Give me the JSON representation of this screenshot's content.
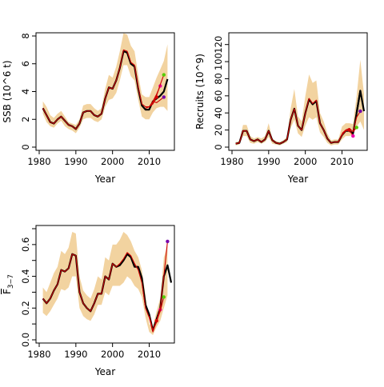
{
  "chart_data": [
    {
      "type": "line",
      "panel": "ssb",
      "xlabel": "Year",
      "ylabel": "SSB (10^6 t)",
      "xlim": [
        1980,
        2016
      ],
      "ylim": [
        0,
        8
      ],
      "xticks": [
        1980,
        1990,
        2000,
        2010
      ],
      "yticks": [
        0,
        2,
        4,
        6,
        8
      ],
      "grid": false,
      "colors": {
        "band": "#f2d3a0",
        "main": "#000000",
        "retro": "#cc0000"
      },
      "band": {
        "x": [
          1981,
          1982,
          1983,
          1984,
          1985,
          1986,
          1987,
          1988,
          1989,
          1990,
          1991,
          1992,
          1993,
          1994,
          1995,
          1996,
          1997,
          1998,
          1999,
          2000,
          2001,
          2002,
          2003,
          2004,
          2005,
          2006,
          2007,
          2008,
          2009,
          2010,
          2011,
          2012,
          2013,
          2014,
          2015
        ],
        "lower": [
          2.4,
          1.8,
          1.5,
          1.4,
          1.7,
          1.9,
          1.5,
          1.3,
          1.2,
          1.0,
          1.4,
          2.0,
          2.1,
          2.1,
          1.9,
          1.8,
          2.0,
          2.9,
          3.4,
          3.5,
          3.9,
          4.8,
          5.9,
          5.9,
          5.1,
          4.8,
          3.4,
          2.2,
          2.0,
          2.0,
          2.5,
          2.8,
          2.9,
          2.9,
          2.6
        ],
        "upper": [
          3.3,
          2.9,
          2.3,
          2.1,
          2.4,
          2.6,
          2.2,
          1.8,
          1.7,
          1.6,
          2.0,
          3.0,
          3.1,
          3.1,
          2.8,
          2.6,
          2.8,
          4.2,
          5.2,
          5.0,
          5.8,
          6.9,
          8.2,
          8.1,
          7.3,
          6.9,
          5.2,
          3.8,
          3.6,
          3.6,
          4.3,
          5.0,
          5.6,
          6.2,
          7.4
        ]
      },
      "series": [
        {
          "x": [
            1981,
            1982,
            1983,
            1984,
            1985,
            1986,
            1987,
            1988,
            1989,
            1990,
            1991,
            1992,
            1993,
            1994,
            1995,
            1996,
            1997,
            1998,
            1999,
            2000,
            2001,
            2002,
            2003,
            2004,
            2005,
            2006,
            2007,
            2008,
            2009,
            2010,
            2011,
            2012,
            2013,
            2014,
            2015
          ],
          "values": [
            2.8,
            2.3,
            1.8,
            1.7,
            2.0,
            2.2,
            1.9,
            1.6,
            1.5,
            1.3,
            1.7,
            2.5,
            2.6,
            2.6,
            2.3,
            2.2,
            2.4,
            3.5,
            4.3,
            4.2,
            4.8,
            5.7,
            6.9,
            6.8,
            6.0,
            5.8,
            4.2,
            3.0,
            2.7,
            2.7,
            3.3,
            3.5,
            3.7,
            4.0,
            4.9
          ],
          "style": "main"
        },
        {
          "x": [
            1981,
            1982,
            1983,
            1984,
            1985,
            1986,
            1987,
            1988,
            1989,
            1990,
            1991,
            1992,
            1993,
            1994,
            1995,
            1996,
            1997,
            1998,
            1999,
            2000,
            2001,
            2002,
            2003,
            2004,
            2005,
            2006,
            2007,
            2008,
            2009,
            2010,
            2011,
            2012
          ],
          "values": [
            2.8,
            2.3,
            1.8,
            1.7,
            2.0,
            2.2,
            1.9,
            1.6,
            1.5,
            1.3,
            1.7,
            2.5,
            2.6,
            2.6,
            2.3,
            2.2,
            2.4,
            3.5,
            4.3,
            4.2,
            4.8,
            5.7,
            7.0,
            6.9,
            6.1,
            5.9,
            4.3,
            3.1,
            2.9,
            2.9,
            3.1,
            3.6
          ],
          "style": "retro",
          "end_color": "#dd0000"
        },
        {
          "x": [
            2009,
            2010,
            2011,
            2012,
            2013
          ],
          "values": [
            2.8,
            2.9,
            3.3,
            3.8,
            4.4
          ],
          "style": "retro",
          "end_color": "#ee00aa"
        },
        {
          "x": [
            2010,
            2011,
            2012,
            2013,
            2014
          ],
          "values": [
            2.9,
            3.2,
            3.7,
            4.5,
            5.2
          ],
          "style": "retro",
          "end_color": "#55cc00"
        },
        {
          "x": [
            2011,
            2012,
            2013,
            2014
          ],
          "values": [
            3.3,
            3.2,
            3.4,
            3.6
          ],
          "style": "retro",
          "end_color": "#7700aa"
        }
      ]
    },
    {
      "type": "line",
      "panel": "recruits",
      "xlabel": "Year",
      "ylabel": "Recruits (10^9)",
      "xlim": [
        1980,
        2016
      ],
      "ylim": [
        0,
        130
      ],
      "xticks": [
        1980,
        1990,
        2000,
        2010
      ],
      "yticks": [
        0,
        20,
        40,
        60,
        80,
        100,
        120
      ],
      "grid": false,
      "colors": {
        "band": "#f2d3a0",
        "main": "#000000",
        "retro": "#cc0000"
      },
      "band": {
        "x": [
          1981,
          1982,
          1983,
          1984,
          1985,
          1986,
          1987,
          1988,
          1989,
          1990,
          1991,
          1992,
          1993,
          1994,
          1995,
          1996,
          1997,
          1998,
          1999,
          2000,
          2001,
          2002,
          2003,
          2004,
          2005,
          2006,
          2007,
          2008,
          2009,
          2010,
          2011,
          2012,
          2013,
          2014,
          2015,
          2016
        ],
        "lower": [
          2,
          3,
          13,
          13,
          5,
          4,
          6,
          4,
          6,
          12,
          4,
          3,
          2,
          4,
          6,
          22,
          32,
          16,
          12,
          25,
          35,
          32,
          35,
          17,
          12,
          5,
          2,
          3,
          3,
          9,
          13,
          13,
          14,
          24,
          30,
          20
        ],
        "upper": [
          6,
          7,
          26,
          26,
          13,
          10,
          12,
          10,
          13,
          28,
          10,
          7,
          6,
          8,
          12,
          45,
          68,
          36,
          30,
          60,
          85,
          75,
          78,
          40,
          30,
          16,
          8,
          9,
          9,
          24,
          28,
          28,
          27,
          60,
          102,
          62
        ]
      },
      "series": [
        {
          "x": [
            1981,
            1982,
            1983,
            1984,
            1985,
            1986,
            1987,
            1988,
            1989,
            1990,
            1991,
            1992,
            1993,
            1994,
            1995,
            1996,
            1997,
            1998,
            1999,
            2000,
            2001,
            2002,
            2003,
            2004,
            2005,
            2006,
            2007,
            2008,
            2009,
            2010,
            2011,
            2012,
            2013,
            2014,
            2015
          ],
          "values": [
            4,
            5,
            19,
            19,
            9,
            7,
            9,
            6,
            9,
            19,
            8,
            5,
            4,
            6,
            9,
            32,
            45,
            25,
            20,
            40,
            56,
            50,
            54,
            28,
            20,
            10,
            5,
            6,
            6,
            14,
            19,
            19,
            16,
            40,
            66
          ],
          "style": "main"
        },
        {
          "x": [
            1981,
            1982,
            1983,
            1984,
            1985,
            1986,
            1987,
            1988,
            1989,
            1990,
            1991,
            1992,
            1993,
            1994,
            1995,
            1996,
            1997,
            1998,
            1999,
            2000,
            2001,
            2002,
            2003,
            2004,
            2005,
            2006,
            2007,
            2008,
            2009,
            2010,
            2011,
            2012
          ],
          "values": [
            4,
            5,
            19,
            19,
            9,
            7,
            9,
            6,
            9,
            19,
            8,
            5,
            4,
            6,
            9,
            32,
            45,
            25,
            20,
            40,
            57,
            51,
            55,
            28,
            20,
            10,
            5,
            6,
            6,
            14,
            19,
            20
          ],
          "style": "retro",
          "end_color": "#dd0000"
        },
        {
          "x": [
            2009,
            2010,
            2011,
            2012,
            2013
          ],
          "values": [
            6,
            15,
            19,
            20,
            13
          ],
          "style": "retro",
          "end_color": "#ee00aa"
        },
        {
          "x": [
            2010,
            2011,
            2012,
            2013,
            2014
          ],
          "values": [
            16,
            20,
            22,
            18,
            23
          ],
          "style": "retro",
          "end_color": "#55cc00"
        },
        {
          "x": [
            2013,
            2014,
            2015
          ],
          "values": [
            18,
            35,
            42
          ],
          "style": "retro",
          "end_color": "#7700aa"
        },
        {
          "x": [
            2014,
            2015,
            2016
          ],
          "values": [
            40,
            66,
            42
          ],
          "style": "main"
        }
      ]
    },
    {
      "type": "line",
      "panel": "fbar",
      "xlabel": "Year",
      "ylabel": "F",
      "ylabel_sub": "3−7",
      "xlim": [
        1980,
        2016
      ],
      "ylim": [
        0,
        0.7
      ],
      "xticks": [
        1980,
        1990,
        2000,
        2010
      ],
      "yticks": [
        0.0,
        0.1,
        0.2,
        0.3,
        0.4,
        0.5,
        0.6,
        0.7
      ],
      "ytick_labels": [
        "0.0",
        "",
        "0.2",
        "",
        "0.4",
        "",
        "0.6",
        ""
      ],
      "grid": false,
      "colors": {
        "band": "#f2d3a0",
        "main": "#000000",
        "retro": "#cc0000"
      },
      "band": {
        "x": [
          1981,
          1982,
          1983,
          1984,
          1985,
          1986,
          1987,
          1988,
          1989,
          1990,
          1991,
          1992,
          1993,
          1994,
          1995,
          1996,
          1997,
          1998,
          1999,
          2000,
          2001,
          2002,
          2003,
          2004,
          2005,
          2006,
          2007,
          2008,
          2009,
          2010,
          2011,
          2012,
          2013,
          2014,
          2015
        ],
        "lower": [
          0.17,
          0.15,
          0.18,
          0.22,
          0.26,
          0.32,
          0.31,
          0.33,
          0.4,
          0.4,
          0.2,
          0.15,
          0.13,
          0.12,
          0.16,
          0.22,
          0.22,
          0.3,
          0.28,
          0.34,
          0.34,
          0.34,
          0.36,
          0.4,
          0.38,
          0.34,
          0.32,
          0.27,
          0.14,
          0.05,
          0.03,
          0.08,
          0.12,
          0.2,
          0.28
        ],
        "upper": [
          0.33,
          0.3,
          0.36,
          0.42,
          0.46,
          0.56,
          0.54,
          0.58,
          0.68,
          0.67,
          0.4,
          0.31,
          0.28,
          0.26,
          0.32,
          0.4,
          0.38,
          0.52,
          0.5,
          0.6,
          0.6,
          0.63,
          0.68,
          0.66,
          0.62,
          0.56,
          0.52,
          0.44,
          0.28,
          0.1,
          0.08,
          0.18,
          0.26,
          0.52,
          0.6
        ]
      },
      "series": [
        {
          "x": [
            1981,
            1982,
            1983,
            1984,
            1985,
            1986,
            1987,
            1988,
            1989,
            1990,
            1991,
            1992,
            1993,
            1994,
            1995,
            1996,
            1997,
            1998,
            1999,
            2000,
            2001,
            2002,
            2003,
            2004,
            2005,
            2006,
            2007,
            2008,
            2009,
            2010,
            2011,
            2012,
            2013,
            2014,
            2015,
            2016
          ],
          "values": [
            0.26,
            0.23,
            0.26,
            0.31,
            0.35,
            0.44,
            0.43,
            0.45,
            0.54,
            0.53,
            0.3,
            0.23,
            0.2,
            0.18,
            0.23,
            0.29,
            0.29,
            0.4,
            0.38,
            0.48,
            0.46,
            0.47,
            0.5,
            0.54,
            0.52,
            0.46,
            0.46,
            0.39,
            0.22,
            0.16,
            0.06,
            0.13,
            0.2,
            0.4,
            0.47,
            0.36
          ],
          "style": "main"
        },
        {
          "x": [
            1981,
            1982,
            1983,
            1984,
            1985,
            1986,
            1987,
            1988,
            1989,
            1990,
            1991,
            1992,
            1993,
            1994,
            1995,
            1996,
            1997,
            1998,
            1999,
            2000,
            2001,
            2002,
            2003,
            2004,
            2005,
            2006,
            2007,
            2008,
            2009,
            2010,
            2011,
            2012
          ],
          "values": [
            0.26,
            0.23,
            0.26,
            0.31,
            0.35,
            0.44,
            0.43,
            0.45,
            0.54,
            0.53,
            0.3,
            0.23,
            0.2,
            0.18,
            0.23,
            0.29,
            0.29,
            0.4,
            0.38,
            0.48,
            0.46,
            0.48,
            0.51,
            0.55,
            0.53,
            0.48,
            0.44,
            0.36,
            0.2,
            0.14,
            0.05,
            0.12
          ],
          "style": "retro",
          "end_color": "#dd0000"
        },
        {
          "x": [
            2010,
            2011,
            2012,
            2013
          ],
          "values": [
            0.15,
            0.06,
            0.11,
            0.19
          ],
          "style": "retro",
          "end_color": "#ee00aa"
        },
        {
          "x": [
            2011,
            2012,
            2013,
            2014
          ],
          "values": [
            0.06,
            0.12,
            0.18,
            0.27
          ],
          "style": "retro",
          "end_color": "#55cc00"
        },
        {
          "x": [
            2012,
            2013,
            2014,
            2015
          ],
          "values": [
            0.12,
            0.2,
            0.4,
            0.62
          ],
          "style": "retro",
          "end_color": "#7700aa"
        }
      ]
    }
  ]
}
